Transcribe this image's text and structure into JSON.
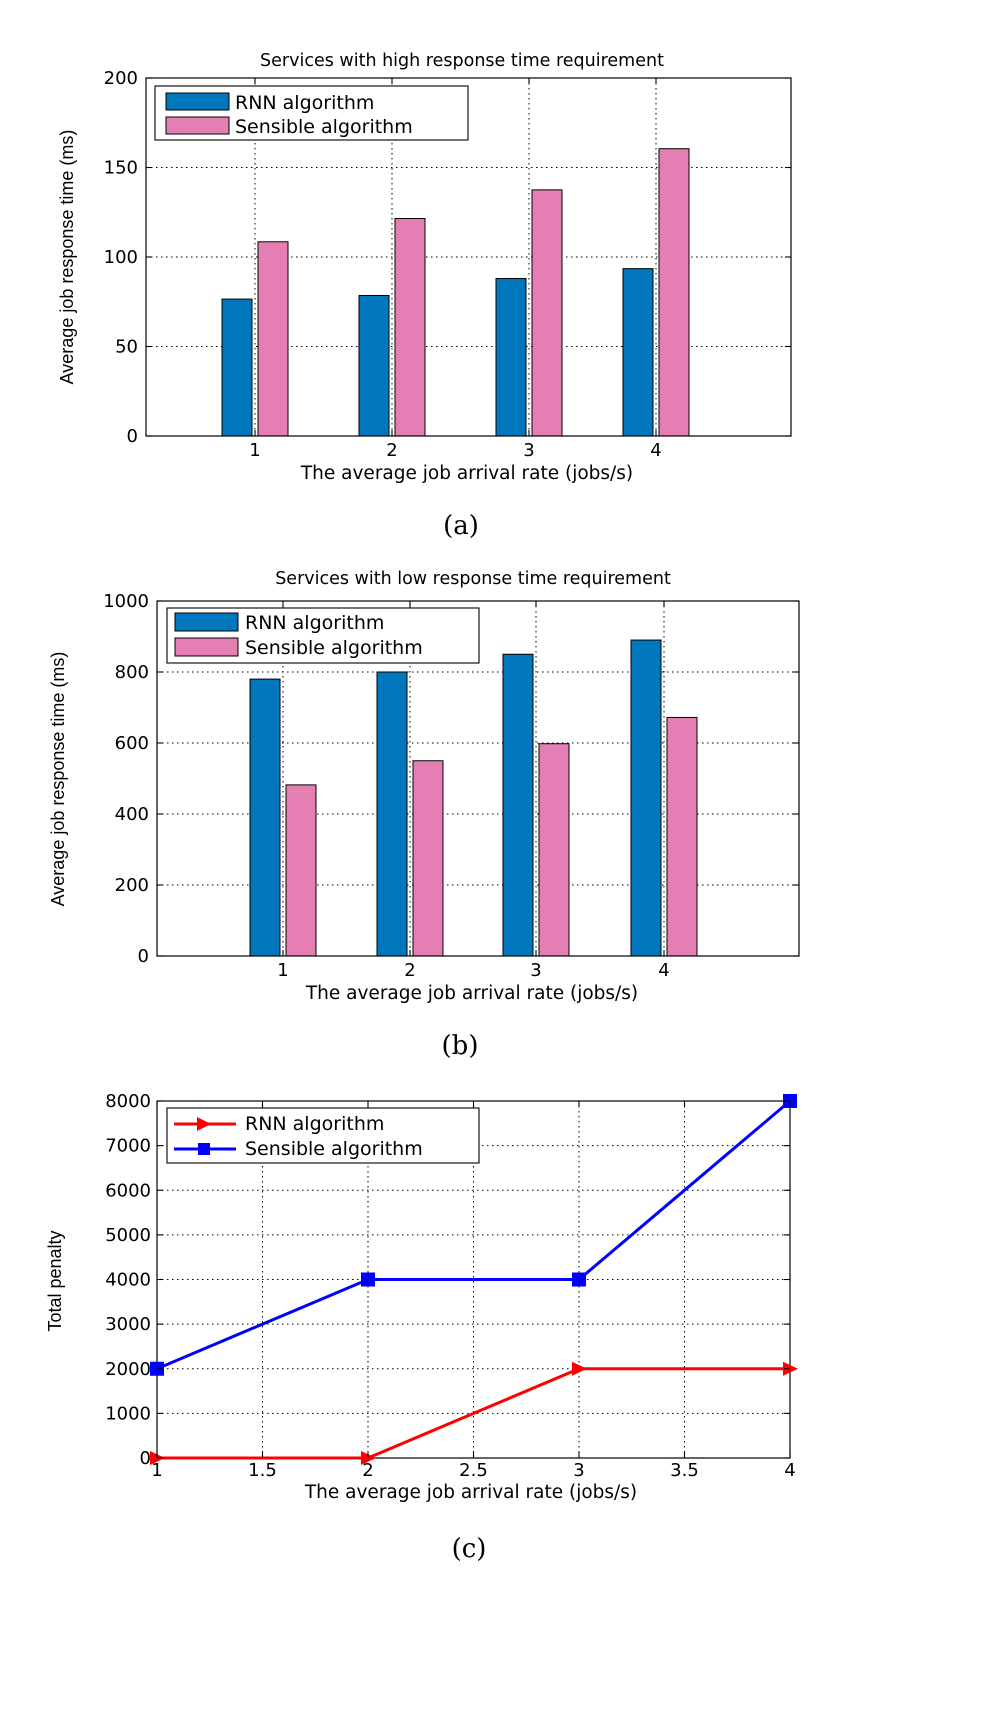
{
  "chart_data": [
    {
      "type": "bar",
      "title": "Services with high response time requirement",
      "xlabel": "The average job arrival rate (jobs/s)",
      "ylabel": "Average job response time (ms)",
      "categories": [
        "1",
        "2",
        "3",
        "4"
      ],
      "ylim": [
        0,
        200
      ],
      "yticks": [
        0,
        50,
        100,
        150,
        200
      ],
      "grid": true,
      "legend_position": "top-left",
      "series": [
        {
          "name": "RNN algorithm",
          "color": "#0077bd",
          "values": [
            76.5,
            78.5,
            88,
            93.5
          ]
        },
        {
          "name": "Sensible algorithm",
          "color": "#e57fb3",
          "values": [
            108.5,
            121.5,
            137.5,
            160.5
          ]
        }
      ],
      "caption": "(a)"
    },
    {
      "type": "bar",
      "title": "Services with low response time requirement",
      "xlabel": "The average job arrival rate (jobs/s)",
      "ylabel": "Average job response time (ms)",
      "categories": [
        "1",
        "2",
        "3",
        "4"
      ],
      "ylim": [
        0,
        1000
      ],
      "yticks": [
        0,
        200,
        400,
        600,
        800,
        1000
      ],
      "grid": true,
      "legend_position": "top-left",
      "series": [
        {
          "name": "RNN algorithm",
          "color": "#0077bd",
          "values": [
            780,
            800,
            850,
            890
          ]
        },
        {
          "name": "Sensible algorithm",
          "color": "#e57fb3",
          "values": [
            482,
            550,
            598,
            672
          ]
        }
      ],
      "caption": "(b)"
    },
    {
      "type": "line",
      "title": "",
      "xlabel": "The average job arrival rate (jobs/s)",
      "ylabel": "Total penalty",
      "xlim": [
        1,
        4
      ],
      "ylim": [
        0,
        8000
      ],
      "xticks": [
        "1",
        "1.5",
        "2",
        "2.5",
        "3",
        "3.5",
        "4"
      ],
      "yticks": [
        "0",
        "1000",
        "2000",
        "3000",
        "4000",
        "5000",
        "6000",
        "7000",
        "8000"
      ],
      "grid": true,
      "legend_position": "top-left",
      "series": [
        {
          "name": "RNN algorithm",
          "color": "#ff0000",
          "marker": "triangle-right",
          "x": [
            1,
            2,
            3,
            4
          ],
          "y": [
            0,
            0,
            2000,
            2000
          ]
        },
        {
          "name": "Sensible algorithm",
          "color": "#0000ff",
          "marker": "square",
          "x": [
            1,
            2,
            3,
            4
          ],
          "y": [
            2000,
            4000,
            4000,
            8000
          ]
        }
      ],
      "caption": "(c)"
    }
  ]
}
